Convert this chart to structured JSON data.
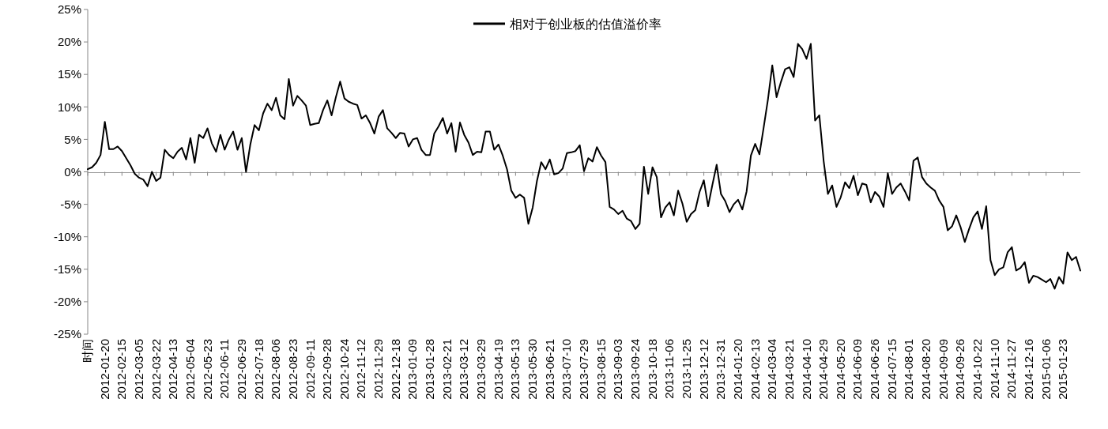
{
  "chart_data": {
    "type": "line",
    "legend": "top",
    "categories": [
      "时间",
      null,
      null,
      null,
      "2012-01-20",
      null,
      null,
      null,
      "2012-02-15",
      null,
      null,
      null,
      "2012-03-05",
      null,
      null,
      null,
      "2012-03-22",
      null,
      null,
      null,
      "2012-04-13",
      null,
      null,
      null,
      "2012-05-04",
      null,
      null,
      null,
      "2012-05-23",
      null,
      null,
      null,
      "2012-06-11",
      null,
      null,
      null,
      "2012-06-29",
      null,
      null,
      null,
      "2012-07-18",
      null,
      null,
      null,
      "2012-08-06",
      null,
      null,
      null,
      "2012-08-23",
      null,
      null,
      null,
      "2012-09-11",
      null,
      null,
      null,
      "2012-09-28",
      null,
      null,
      null,
      "2012-10-24",
      null,
      null,
      null,
      "2012-11-12",
      null,
      null,
      null,
      "2012-11-29",
      null,
      null,
      null,
      "2012-12-18",
      null,
      null,
      null,
      "2013-01-09",
      null,
      null,
      null,
      "2013-01-28",
      null,
      null,
      null,
      "2013-02-21",
      null,
      null,
      null,
      "2013-03-12",
      null,
      null,
      null,
      "2013-03-29",
      null,
      null,
      null,
      "2013-04-19",
      null,
      null,
      null,
      "2013-05-13",
      null,
      null,
      null,
      "2013-05-30",
      null,
      null,
      null,
      "2013-06-21",
      null,
      null,
      null,
      "2013-07-10",
      null,
      null,
      null,
      "2013-07-29",
      null,
      null,
      null,
      "2013-08-15",
      null,
      null,
      null,
      "2013-09-03",
      null,
      null,
      null,
      "2013-09-24",
      null,
      null,
      null,
      "2013-10-18",
      null,
      null,
      null,
      "2013-11-06",
      null,
      null,
      null,
      "2013-11-25",
      null,
      null,
      null,
      "2013-12-12",
      null,
      null,
      null,
      "2013-12-31",
      null,
      null,
      null,
      "2014-01-20",
      null,
      null,
      null,
      "2014-02-13",
      null,
      null,
      null,
      "2014-03-04",
      null,
      null,
      null,
      "2014-03-21",
      null,
      null,
      null,
      "2014-04-10",
      null,
      null,
      null,
      "2014-04-29",
      null,
      null,
      null,
      "2014-05-20",
      null,
      null,
      null,
      "2014-06-09",
      null,
      null,
      null,
      "2014-06-26",
      null,
      null,
      null,
      "2014-07-15",
      null,
      null,
      null,
      "2014-08-01",
      null,
      null,
      null,
      "2014-08-20",
      null,
      null,
      null,
      "2014-09-09",
      null,
      null,
      null,
      "2014-09-26",
      null,
      null,
      null,
      "2014-10-22",
      null,
      null,
      null,
      "2014-11-10",
      null,
      null,
      null,
      "2014-11-27",
      null,
      null,
      null,
      "2014-12-16",
      null,
      null,
      null,
      "2015-01-06",
      null,
      null,
      null,
      "2015-01-23",
      null,
      null,
      null,
      null
    ],
    "series": [
      {
        "name": "相对于创业板的估值溢价率",
        "color": "#000000",
        "values": [
          0.4,
          0.7,
          1.4,
          2.6,
          7.7,
          3.5,
          3.5,
          3.9,
          3.2,
          2.1,
          1.0,
          -0.3,
          -0.9,
          -1.2,
          -2.2,
          0,
          -1.4,
          -0.9,
          3.4,
          2.6,
          2.1,
          3.1,
          3.7,
          1.9,
          5.2,
          1.4,
          5.7,
          5.2,
          6.7,
          4.4,
          3.1,
          5.7,
          3.4,
          5.0,
          6.2,
          3.4,
          5.2,
          0,
          4.2,
          7.2,
          6.4,
          9.0,
          10.5,
          9.5,
          11.4,
          8.7,
          8.1,
          14.3,
          10.2,
          11.7,
          11.0,
          10.2,
          7.2,
          7.4,
          7.5,
          9.5,
          11.0,
          8.7,
          11.5,
          13.9,
          11.3,
          10.8,
          10.5,
          10.3,
          8.2,
          8.7,
          7.5,
          5.9,
          8.5,
          9.5,
          6.7,
          6.0,
          5.2,
          6.0,
          5.9,
          3.9,
          5.0,
          5.2,
          3.4,
          2.6,
          2.6,
          5.9,
          7.0,
          8.3,
          5.9,
          7.5,
          3.1,
          7.6,
          5.7,
          4.5,
          2.6,
          3.1,
          3.0,
          6.2,
          6.2,
          3.4,
          4.2,
          2.5,
          0.4,
          -2.9,
          -4.0,
          -3.5,
          -4.0,
          -8.0,
          -5.5,
          -1.4,
          1.5,
          0.4,
          1.9,
          -0.4,
          -0.2,
          0.5,
          2.9,
          3.0,
          3.2,
          4.1,
          0.1,
          2.1,
          1.6,
          3.8,
          2.5,
          1.5,
          -5.4,
          -5.8,
          -6.5,
          -6.0,
          -7.2,
          -7.6,
          -8.8,
          -8.0,
          0.8,
          -3.4,
          0.7,
          -0.8,
          -7.0,
          -5.5,
          -4.7,
          -6.7,
          -2.9,
          -4.9,
          -7.7,
          -6.5,
          -5.9,
          -3.1,
          -1.3,
          -5.3,
          -2.0,
          1.1,
          -3.4,
          -4.5,
          -6.2,
          -5.0,
          -4.3,
          -5.8,
          -3.0,
          2.5,
          4.3,
          2.7,
          6.9,
          11.2,
          16.4,
          11.5,
          13.8,
          15.8,
          16.1,
          14.6,
          19.7,
          18.9,
          17.4,
          19.7,
          7.9,
          8.7,
          1.7,
          -3.4,
          -2.1,
          -5.4,
          -3.9,
          -1.6,
          -2.5,
          -0.6,
          -3.6,
          -1.8,
          -2.0,
          -4.7,
          -3.1,
          -3.8,
          -5.4,
          -0.2,
          -3.4,
          -2.4,
          -1.8,
          -3.0,
          -4.4,
          1.7,
          2.2,
          -0.8,
          -1.8,
          -2.4,
          -2.9,
          -4.4,
          -5.4,
          -9.0,
          -8.4,
          -6.7,
          -8.5,
          -10.8,
          -8.8,
          -7.0,
          -6.1,
          -8.8,
          -5.3,
          -13.6,
          -15.9,
          -15.0,
          -14.7,
          -12.4,
          -11.6,
          -15.2,
          -14.8,
          -13.9,
          -17.1,
          -16.0,
          -16.2,
          -16.6,
          -17.0,
          -16.5,
          -18.0,
          -16.2,
          -17.2,
          -12.4,
          -13.6,
          -13.1,
          -15.2
        ]
      }
    ],
    "ylim": [
      -25,
      25
    ],
    "yticks": [
      {
        "value": -25,
        "label": "-25%"
      },
      {
        "value": -20,
        "label": "-20%"
      },
      {
        "value": -15,
        "label": "-15%"
      },
      {
        "value": -10,
        "label": "-10%"
      },
      {
        "value": -5,
        "label": "-5%"
      },
      {
        "value": 0,
        "label": "0%"
      },
      {
        "value": 5,
        "label": "5%"
      },
      {
        "value": 10,
        "label": "10%"
      },
      {
        "value": 15,
        "label": "15%"
      },
      {
        "value": 20,
        "label": "20%"
      },
      {
        "value": 25,
        "label": "25%"
      }
    ]
  }
}
